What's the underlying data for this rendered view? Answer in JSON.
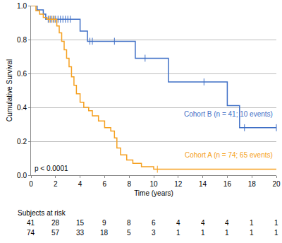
{
  "chart_data": {
    "type": "step",
    "xlabel": "Time (years)",
    "ylabel": "Cumulative Survival",
    "xlim": [
      0,
      20
    ],
    "ylim": [
      0,
      1
    ],
    "xticks": [
      0,
      2,
      4,
      6,
      8,
      10,
      12,
      14,
      16,
      18,
      20
    ],
    "yticks": [
      {
        "value": 0,
        "label": "0.0"
      },
      0.2,
      0.4,
      0.6,
      0.8,
      {
        "value": 1,
        "label": "1.0"
      }
    ],
    "grid": true,
    "annotations": [
      "p < 0.0001"
    ],
    "at_risk_label": "Subjects at risk",
    "at_risk_x": [
      0,
      2,
      4,
      6,
      8,
      10,
      12,
      14,
      16,
      18,
      20
    ],
    "series": [
      {
        "name": "Cohort B (n = 41; 10 events)",
        "color": "#3f6fc6",
        "marker": "line-ns",
        "x": [
          0,
          0.5,
          1.0,
          1.2,
          4.0,
          4.6,
          8.5,
          11.2,
          16.0,
          17.0,
          20
        ],
        "values": [
          1,
          0.975,
          0.95,
          0.92,
          0.85,
          0.79,
          0.69,
          0.55,
          0.41,
          0.28,
          0.28
        ],
        "censored": {
          "x": [
            1.4,
            1.6,
            1.8,
            2.0,
            2.2,
            2.4,
            2.6,
            2.8,
            3.0,
            3.2,
            4.8,
            5.0,
            6.8,
            9.3,
            14.1,
            17.4,
            20
          ],
          "values": [
            0.92,
            0.92,
            0.92,
            0.92,
            0.92,
            0.92,
            0.92,
            0.92,
            0.92,
            0.92,
            0.79,
            0.79,
            0.79,
            0.69,
            0.55,
            0.28,
            0.28
          ]
        },
        "at_risk": [
          41,
          28,
          15,
          9,
          8,
          6,
          4,
          4,
          4,
          1,
          1
        ]
      },
      {
        "name": "Cohort A (n = 74; 65 events)",
        "color": "#f5a020",
        "marker": "line-ns",
        "x": [
          0,
          0.4,
          0.7,
          1.0,
          1.3,
          2.1,
          2.3,
          2.5,
          2.7,
          2.9,
          3.1,
          3.3,
          3.5,
          3.7,
          4.0,
          4.3,
          4.7,
          5.0,
          5.5,
          6.0,
          6.5,
          6.8,
          7.0,
          7.3,
          7.8,
          8.3,
          9.0,
          10.0,
          20
        ],
        "values": [
          1,
          0.97,
          0.95,
          0.93,
          0.92,
          0.88,
          0.84,
          0.79,
          0.74,
          0.69,
          0.64,
          0.58,
          0.53,
          0.48,
          0.43,
          0.4,
          0.38,
          0.35,
          0.32,
          0.28,
          0.26,
          0.22,
          0.16,
          0.12,
          0.09,
          0.07,
          0.05,
          0.035,
          0.035
        ],
        "censored": {
          "x": [
            1.5,
            1.7,
            1.9,
            10.3
          ],
          "values": [
            0.92,
            0.92,
            0.92,
            0.035
          ]
        },
        "at_risk": [
          74,
          57,
          33,
          18,
          5,
          3,
          1,
          1,
          1,
          1,
          1
        ]
      }
    ]
  }
}
